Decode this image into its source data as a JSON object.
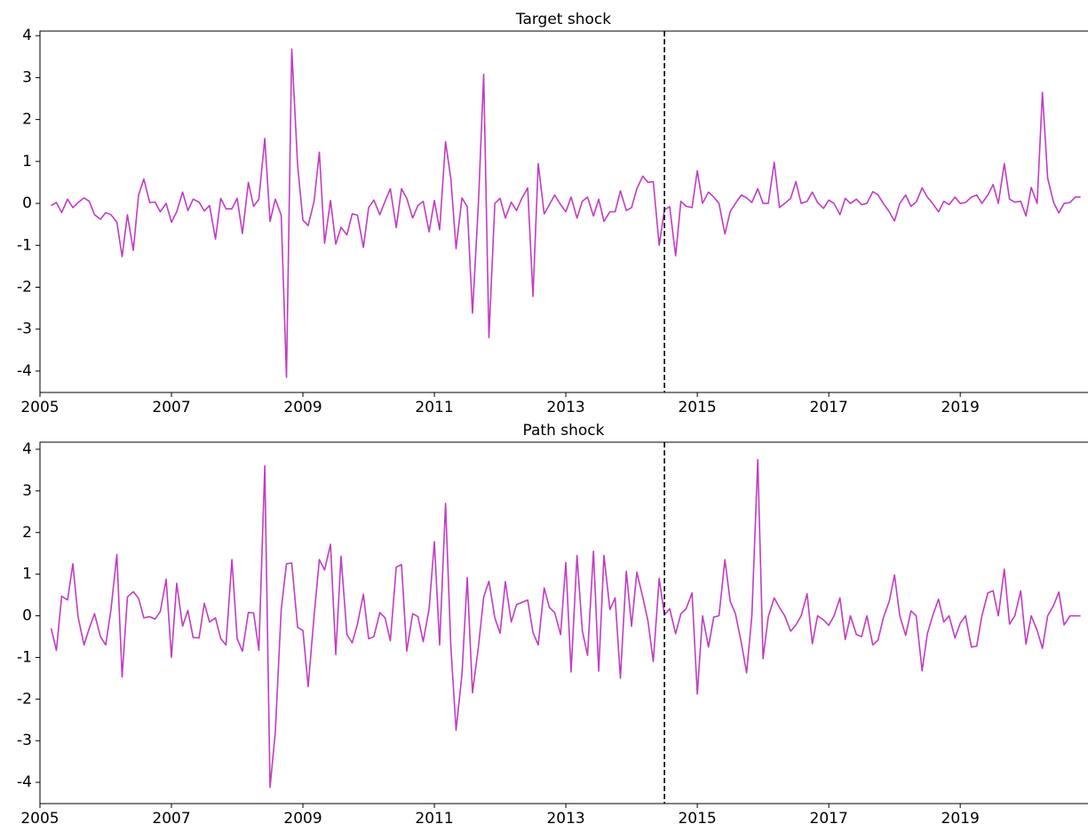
{
  "chart_data": [
    {
      "type": "line",
      "title": "Target shock",
      "x": [
        2005.17,
        2005.25,
        2005.33,
        2005.42,
        2005.5,
        2005.58,
        2005.67,
        2005.75,
        2005.83,
        2005.92,
        2006,
        2006.08,
        2006.17,
        2006.25,
        2006.33,
        2006.42,
        2006.5,
        2006.58,
        2006.67,
        2006.75,
        2006.83,
        2006.92,
        2007,
        2007.08,
        2007.17,
        2007.25,
        2007.33,
        2007.42,
        2007.5,
        2007.58,
        2007.67,
        2007.75,
        2007.83,
        2007.92,
        2008,
        2008.08,
        2008.17,
        2008.25,
        2008.33,
        2008.42,
        2008.5,
        2008.58,
        2008.67,
        2008.75,
        2008.83,
        2008.92,
        2009,
        2009.08,
        2009.17,
        2009.25,
        2009.33,
        2009.42,
        2009.5,
        2009.58,
        2009.67,
        2009.75,
        2009.83,
        2009.92,
        2010,
        2010.08,
        2010.17,
        2010.25,
        2010.33,
        2010.42,
        2010.5,
        2010.58,
        2010.67,
        2010.75,
        2010.83,
        2010.92,
        2011,
        2011.08,
        2011.17,
        2011.25,
        2011.33,
        2011.42,
        2011.5,
        2011.58,
        2011.67,
        2011.75,
        2011.83,
        2011.92,
        2012,
        2012.08,
        2012.17,
        2012.25,
        2012.33,
        2012.42,
        2012.5,
        2012.58,
        2012.67,
        2012.75,
        2012.83,
        2012.92,
        2013,
        2013.08,
        2013.17,
        2013.25,
        2013.33,
        2013.42,
        2013.5,
        2013.58,
        2013.67,
        2013.75,
        2013.83,
        2013.92,
        2014,
        2014.08,
        2014.17,
        2014.25,
        2014.33,
        2014.42,
        2014.5,
        2014.58,
        2014.67,
        2014.75,
        2014.83,
        2014.92,
        2015,
        2015.08,
        2015.17,
        2015.25,
        2015.33,
        2015.42,
        2015.5,
        2015.58,
        2015.67,
        2015.75,
        2015.83,
        2015.92,
        2016,
        2016.08,
        2016.17,
        2016.25,
        2016.33,
        2016.42,
        2016.5,
        2016.58,
        2016.67,
        2016.75,
        2016.83,
        2016.92,
        2017,
        2017.08,
        2017.17,
        2017.25,
        2017.33,
        2017.42,
        2017.5,
        2017.58,
        2017.67,
        2017.75,
        2017.83,
        2017.92,
        2018,
        2018.08,
        2018.17,
        2018.25,
        2018.33,
        2018.42,
        2018.5,
        2018.58,
        2018.67,
        2018.75,
        2018.83,
        2018.92,
        2019,
        2019.08,
        2019.17,
        2019.25,
        2019.33,
        2019.42,
        2019.5,
        2019.58,
        2019.67,
        2019.75,
        2019.83,
        2019.92,
        2020,
        2020.08,
        2020.17,
        2020.25,
        2020.33,
        2020.42,
        2020.5,
        2020.58,
        2020.67,
        2020.75,
        2020.83
      ],
      "values": [
        -0.05,
        0.02,
        -0.22,
        0.1,
        -0.1,
        0.02,
        0.13,
        0.05,
        -0.27,
        -0.38,
        -0.22,
        -0.27,
        -0.45,
        -1.27,
        -0.27,
        -1.12,
        0.2,
        0.58,
        0.02,
        0.03,
        -0.2,
        0.0,
        -0.45,
        -0.2,
        0.27,
        -0.17,
        0.1,
        0.03,
        -0.18,
        -0.05,
        -0.85,
        0.12,
        -0.13,
        -0.13,
        0.12,
        -0.72,
        0.5,
        -0.07,
        0.1,
        1.55,
        -0.43,
        0.1,
        -0.28,
        -4.15,
        3.68,
        0.9,
        -0.4,
        -0.53,
        0.05,
        1.22,
        -0.95,
        0.07,
        -0.97,
        -0.57,
        -0.75,
        -0.25,
        -0.28,
        -1.05,
        -0.1,
        0.08,
        -0.27,
        0.05,
        0.35,
        -0.58,
        0.35,
        0.12,
        -0.35,
        -0.05,
        0.05,
        -0.68,
        0.07,
        -0.63,
        1.47,
        0.6,
        -1.08,
        0.13,
        -0.08,
        -2.62,
        0.0,
        3.08,
        -3.2,
        0.0,
        0.12,
        -0.35,
        0.03,
        -0.17,
        0.12,
        0.37,
        -2.22,
        0.95,
        -0.25,
        -0.03,
        0.2,
        -0.03,
        -0.2,
        0.15,
        -0.35,
        0.05,
        0.15,
        -0.3,
        0.1,
        -0.43,
        -0.2,
        -0.2,
        0.3,
        -0.17,
        -0.1,
        0.35,
        0.65,
        0.5,
        0.52,
        -1.0,
        -0.15,
        -0.08,
        -1.25,
        0.05,
        -0.07,
        -0.1,
        0.78,
        0.0,
        0.27,
        0.15,
        0.0,
        -0.73,
        -0.2,
        0.0,
        0.2,
        0.13,
        0.02,
        0.35,
        0.0,
        0.0,
        0.98,
        -0.1,
        0.0,
        0.12,
        0.52,
        0.0,
        0.05,
        0.27,
        0.02,
        -0.12,
        0.08,
        0.0,
        -0.27,
        0.12,
        0.0,
        0.1,
        -0.03,
        0.0,
        0.28,
        0.2,
        0.0,
        -0.2,
        -0.42,
        0.0,
        0.2,
        -0.07,
        0.03,
        0.37,
        0.15,
        0.0,
        -0.2,
        0.05,
        -0.03,
        0.15,
        0.0,
        0.02,
        0.15,
        0.2,
        0.0,
        0.2,
        0.45,
        0.0,
        0.95,
        0.1,
        0.03,
        0.05,
        -0.3,
        0.38,
        0.0,
        2.65,
        0.6,
        0.02,
        -0.23,
        0.0,
        0.02,
        0.15,
        0.15
      ],
      "color": "#c23cc2",
      "xlim": [
        2005,
        2020.93
      ],
      "ylim": [
        -4.51,
        4.11
      ],
      "xticks": [
        2005,
        2007,
        2009,
        2011,
        2013,
        2015,
        2017,
        2019
      ],
      "yticks": [
        -4,
        -3,
        -2,
        -1,
        0,
        1,
        2,
        3,
        4
      ],
      "vline": 2014.5
    },
    {
      "type": "line",
      "title": "Path shock",
      "x": [
        2005.17,
        2005.25,
        2005.33,
        2005.42,
        2005.5,
        2005.58,
        2005.67,
        2005.75,
        2005.83,
        2005.92,
        2006,
        2006.08,
        2006.17,
        2006.25,
        2006.33,
        2006.42,
        2006.5,
        2006.58,
        2006.67,
        2006.75,
        2006.83,
        2006.92,
        2007,
        2007.08,
        2007.17,
        2007.25,
        2007.33,
        2007.42,
        2007.5,
        2007.58,
        2007.67,
        2007.75,
        2007.83,
        2007.92,
        2008,
        2008.08,
        2008.17,
        2008.25,
        2008.33,
        2008.42,
        2008.5,
        2008.58,
        2008.67,
        2008.75,
        2008.83,
        2008.92,
        2009,
        2009.08,
        2009.17,
        2009.25,
        2009.33,
        2009.42,
        2009.5,
        2009.58,
        2009.67,
        2009.75,
        2009.83,
        2009.92,
        2010,
        2010.08,
        2010.17,
        2010.25,
        2010.33,
        2010.42,
        2010.5,
        2010.58,
        2010.67,
        2010.75,
        2010.83,
        2010.92,
        2011,
        2011.08,
        2011.17,
        2011.25,
        2011.33,
        2011.42,
        2011.5,
        2011.58,
        2011.67,
        2011.75,
        2011.83,
        2011.92,
        2012,
        2012.08,
        2012.17,
        2012.25,
        2012.33,
        2012.42,
        2012.5,
        2012.58,
        2012.67,
        2012.75,
        2012.83,
        2012.92,
        2013,
        2013.08,
        2013.17,
        2013.25,
        2013.33,
        2013.42,
        2013.5,
        2013.58,
        2013.67,
        2013.75,
        2013.83,
        2013.92,
        2014,
        2014.08,
        2014.17,
        2014.25,
        2014.33,
        2014.42,
        2014.5,
        2014.58,
        2014.67,
        2014.75,
        2014.83,
        2014.92,
        2015,
        2015.08,
        2015.17,
        2015.25,
        2015.33,
        2015.42,
        2015.5,
        2015.58,
        2015.67,
        2015.75,
        2015.83,
        2015.92,
        2016,
        2016.08,
        2016.17,
        2016.25,
        2016.33,
        2016.42,
        2016.5,
        2016.58,
        2016.67,
        2016.75,
        2016.83,
        2016.92,
        2017,
        2017.08,
        2017.17,
        2017.25,
        2017.33,
        2017.42,
        2017.5,
        2017.58,
        2017.67,
        2017.75,
        2017.83,
        2017.92,
        2018,
        2018.08,
        2018.17,
        2018.25,
        2018.33,
        2018.42,
        2018.5,
        2018.58,
        2018.67,
        2018.75,
        2018.83,
        2018.92,
        2019,
        2019.08,
        2019.17,
        2019.25,
        2019.33,
        2019.42,
        2019.5,
        2019.58,
        2019.67,
        2019.75,
        2019.83,
        2019.92,
        2020,
        2020.08,
        2020.17,
        2020.25,
        2020.33,
        2020.42,
        2020.5,
        2020.58,
        2020.67,
        2020.75,
        2020.83
      ],
      "values": [
        -0.3,
        -0.83,
        0.47,
        0.38,
        1.25,
        -0.03,
        -0.7,
        -0.3,
        0.05,
        -0.5,
        -0.7,
        0.15,
        1.47,
        -1.47,
        0.45,
        0.58,
        0.42,
        -0.05,
        -0.02,
        -0.08,
        0.1,
        0.88,
        -1.0,
        0.78,
        -0.25,
        0.13,
        -0.52,
        -0.53,
        0.3,
        -0.15,
        -0.05,
        -0.55,
        -0.7,
        1.35,
        -0.55,
        -0.85,
        0.08,
        0.07,
        -0.83,
        3.6,
        -4.12,
        -2.8,
        0.15,
        1.25,
        1.27,
        -0.28,
        -0.35,
        -1.7,
        0.0,
        1.35,
        1.1,
        1.72,
        -0.93,
        1.43,
        -0.45,
        -0.65,
        -0.2,
        0.52,
        -0.55,
        -0.5,
        0.08,
        -0.05,
        -0.6,
        1.17,
        1.23,
        -0.85,
        0.05,
        -0.02,
        -0.62,
        0.17,
        1.78,
        -0.7,
        2.7,
        -0.72,
        -2.75,
        -1.4,
        0.92,
        -1.85,
        -0.75,
        0.45,
        0.83,
        -0.05,
        -0.42,
        0.82,
        -0.15,
        0.27,
        0.32,
        0.38,
        -0.4,
        -0.7,
        0.67,
        0.2,
        0.08,
        -0.45,
        1.28,
        -1.35,
        1.45,
        -0.35,
        -0.95,
        1.55,
        -1.33,
        1.45,
        0.15,
        0.43,
        -1.5,
        1.07,
        -0.25,
        1.05,
        0.45,
        -0.13,
        -1.1,
        0.9,
        0.02,
        0.17,
        -0.43,
        0.05,
        0.17,
        0.55,
        -1.88,
        0.0,
        -0.75,
        -0.03,
        0.0,
        1.35,
        0.35,
        0.05,
        -0.65,
        -1.37,
        0.0,
        3.75,
        -1.03,
        -0.02,
        0.43,
        0.2,
        0.0,
        -0.37,
        -0.22,
        0.0,
        0.53,
        -0.67,
        0.0,
        -0.1,
        -0.23,
        0.0,
        0.43,
        -0.57,
        0.0,
        -0.45,
        -0.5,
        0.0,
        -0.7,
        -0.58,
        -0.05,
        0.35,
        0.98,
        0.0,
        -0.47,
        0.12,
        0.0,
        -1.32,
        -0.43,
        0.0,
        0.4,
        -0.15,
        0.0,
        -0.53,
        -0.18,
        0.0,
        -0.75,
        -0.73,
        0.0,
        0.55,
        0.6,
        0.0,
        1.12,
        -0.2,
        0.0,
        0.6,
        -0.68,
        0.0,
        -0.35,
        -0.78,
        0.0,
        0.25,
        0.57,
        -0.22,
        0.0,
        0.0,
        0.0
      ],
      "color": "#c23cc2",
      "xlim": [
        2005,
        2020.93
      ],
      "ylim": [
        -4.51,
        4.17
      ],
      "xticks": [
        2005,
        2007,
        2009,
        2011,
        2013,
        2015,
        2017,
        2019
      ],
      "yticks": [
        -4,
        -3,
        -2,
        -1,
        0,
        1,
        2,
        3,
        4
      ],
      "vline": 2014.5
    }
  ]
}
